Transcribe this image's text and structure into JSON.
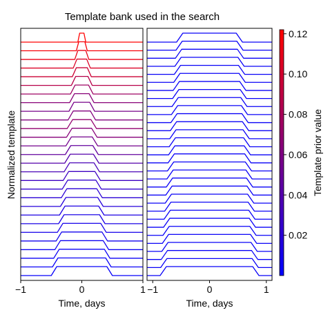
{
  "figure": {
    "title": "Template bank used in the search",
    "ylabel": "Normalized template"
  },
  "chart_data": [
    {
      "type": "line",
      "panel": "left",
      "xlabel": "Time, days",
      "xlim": [
        -1,
        1
      ],
      "x_ticks": [
        -1,
        0,
        1
      ],
      "x_tick_labels": [
        "−1",
        "0",
        "1"
      ],
      "y_ticks": [],
      "template_shape": "plateau with sloped ramps; widths increase from top to bottom",
      "series": [
        {
          "width": 0.07,
          "ramp": 0.03,
          "prior": 0.122
        },
        {
          "width": 0.1,
          "ramp": 0.04,
          "prior": 0.118
        },
        {
          "width": 0.13,
          "ramp": 0.05,
          "prior": 0.112
        },
        {
          "width": 0.16,
          "ramp": 0.06,
          "prior": 0.105
        },
        {
          "width": 0.18,
          "ramp": 0.065,
          "prior": 0.097
        },
        {
          "width": 0.2,
          "ramp": 0.07,
          "prior": 0.087
        },
        {
          "width": 0.22,
          "ramp": 0.075,
          "prior": 0.075
        },
        {
          "width": 0.24,
          "ramp": 0.08,
          "prior": 0.065
        },
        {
          "width": 0.26,
          "ramp": 0.08,
          "prior": 0.057
        },
        {
          "width": 0.28,
          "ramp": 0.085,
          "prior": 0.062
        },
        {
          "width": 0.3,
          "ramp": 0.09,
          "prior": 0.07
        },
        {
          "width": 0.32,
          "ramp": 0.09,
          "prior": 0.064
        },
        {
          "width": 0.34,
          "ramp": 0.09,
          "prior": 0.055
        },
        {
          "width": 0.36,
          "ramp": 0.09,
          "prior": 0.047
        },
        {
          "width": 0.38,
          "ramp": 0.09,
          "prior": 0.04
        },
        {
          "width": 0.4,
          "ramp": 0.09,
          "prior": 0.034
        },
        {
          "width": 0.43,
          "ramp": 0.09,
          "prior": 0.029
        },
        {
          "width": 0.46,
          "ramp": 0.09,
          "prior": 0.024
        },
        {
          "width": 0.49,
          "ramp": 0.09,
          "prior": 0.02
        },
        {
          "width": 0.52,
          "ramp": 0.09,
          "prior": 0.017
        },
        {
          "width": 0.55,
          "ramp": 0.09,
          "prior": 0.014
        },
        {
          "width": 0.58,
          "ramp": 0.09,
          "prior": 0.012
        },
        {
          "width": 0.62,
          "ramp": 0.09,
          "prior": 0.01
        },
        {
          "width": 0.66,
          "ramp": 0.09,
          "prior": 0.008
        },
        {
          "width": 0.7,
          "ramp": 0.09,
          "prior": 0.006
        },
        {
          "width": 0.74,
          "ramp": 0.09,
          "prior": 0.005
        },
        {
          "width": 0.78,
          "ramp": 0.09,
          "prior": 0.004
        },
        {
          "width": 0.82,
          "ramp": 0.09,
          "prior": 0.003
        }
      ]
    },
    {
      "type": "line",
      "panel": "right",
      "xlabel": "Time, days",
      "xlim": [
        -1.1,
        1.1
      ],
      "x_ticks": [
        -1,
        0,
        1
      ],
      "x_tick_labels": [
        "−1",
        "0",
        "1"
      ],
      "y_ticks": [],
      "template_shape": "plateau with sloped ramps; widths increase from top to bottom",
      "series": [
        {
          "width": 0.94,
          "ramp": 0.11,
          "prior": 0.004
        },
        {
          "width": 0.96,
          "ramp": 0.11,
          "prior": 0.004
        },
        {
          "width": 0.98,
          "ramp": 0.11,
          "prior": 0.004
        },
        {
          "width": 1.0,
          "ramp": 0.11,
          "prior": 0.004
        },
        {
          "width": 1.02,
          "ramp": 0.11,
          "prior": 0.004
        },
        {
          "width": 1.04,
          "ramp": 0.11,
          "prior": 0.004
        },
        {
          "width": 1.06,
          "ramp": 0.11,
          "prior": 0.004
        },
        {
          "width": 1.08,
          "ramp": 0.11,
          "prior": 0.004
        },
        {
          "width": 1.1,
          "ramp": 0.11,
          "prior": 0.004
        },
        {
          "width": 1.12,
          "ramp": 0.11,
          "prior": 0.004
        },
        {
          "width": 1.14,
          "ramp": 0.11,
          "prior": 0.004
        },
        {
          "width": 1.16,
          "ramp": 0.11,
          "prior": 0.004
        },
        {
          "width": 1.18,
          "ramp": 0.11,
          "prior": 0.004
        },
        {
          "width": 1.2,
          "ramp": 0.11,
          "prior": 0.004
        },
        {
          "width": 1.22,
          "ramp": 0.11,
          "prior": 0.004
        },
        {
          "width": 1.24,
          "ramp": 0.11,
          "prior": 0.004
        },
        {
          "width": 1.26,
          "ramp": 0.11,
          "prior": 0.004
        },
        {
          "width": 1.28,
          "ramp": 0.11,
          "prior": 0.004
        },
        {
          "width": 1.3,
          "ramp": 0.11,
          "prior": 0.004
        },
        {
          "width": 1.32,
          "ramp": 0.11,
          "prior": 0.004
        },
        {
          "width": 1.34,
          "ramp": 0.11,
          "prior": 0.004
        },
        {
          "width": 1.36,
          "ramp": 0.11,
          "prior": 0.004
        },
        {
          "width": 1.38,
          "ramp": 0.11,
          "prior": 0.004
        },
        {
          "width": 1.4,
          "ramp": 0.11,
          "prior": 0.004
        },
        {
          "width": 1.42,
          "ramp": 0.11,
          "prior": 0.004
        },
        {
          "width": 1.44,
          "ramp": 0.11,
          "prior": 0.004
        },
        {
          "width": 1.46,
          "ramp": 0.11,
          "prior": 0.004
        },
        {
          "width": 1.48,
          "ramp": 0.11,
          "prior": 0.004
        },
        {
          "width": 1.5,
          "ramp": 0.11,
          "prior": 0.004
        },
        {
          "width": 1.52,
          "ramp": 0.11,
          "prior": 0.004
        }
      ]
    }
  ],
  "colorbar": {
    "label": "Template prior value",
    "min": 0.0,
    "max": 0.122,
    "ticks": [
      0.02,
      0.04,
      0.06,
      0.08,
      0.1,
      0.12
    ],
    "tick_labels": [
      "0.02",
      "0.04",
      "0.06",
      "0.08",
      "0.10",
      "0.12"
    ],
    "color_low": "#0000ff",
    "color_high": "#ff0000"
  }
}
